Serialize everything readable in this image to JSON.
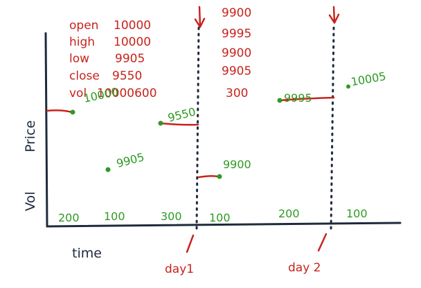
{
  "colors": {
    "red": "#c8231c",
    "green": "#2e9a22",
    "ink": "#1e2a3c"
  },
  "summary_left": [
    {
      "label": "open",
      "value": "10000"
    },
    {
      "label": "high",
      "value": "10000"
    },
    {
      "label": "low",
      "value": "9905"
    },
    {
      "label": "close",
      "value": "9550"
    },
    {
      "label": "vol",
      "value": "10000600"
    }
  ],
  "summary_right": [
    "9900",
    "9995",
    "9900",
    "9905",
    "300"
  ],
  "axes": {
    "y_label_price": "Price",
    "y_label_vol": "Vol",
    "x_label": "time"
  },
  "price_points": [
    "10000",
    "9905",
    "9550",
    "9900",
    "9995",
    "10005"
  ],
  "volume_labels": [
    "200",
    "100",
    "300",
    "100",
    "200",
    "100"
  ],
  "day_labels": [
    "day1",
    "day 2"
  ]
}
